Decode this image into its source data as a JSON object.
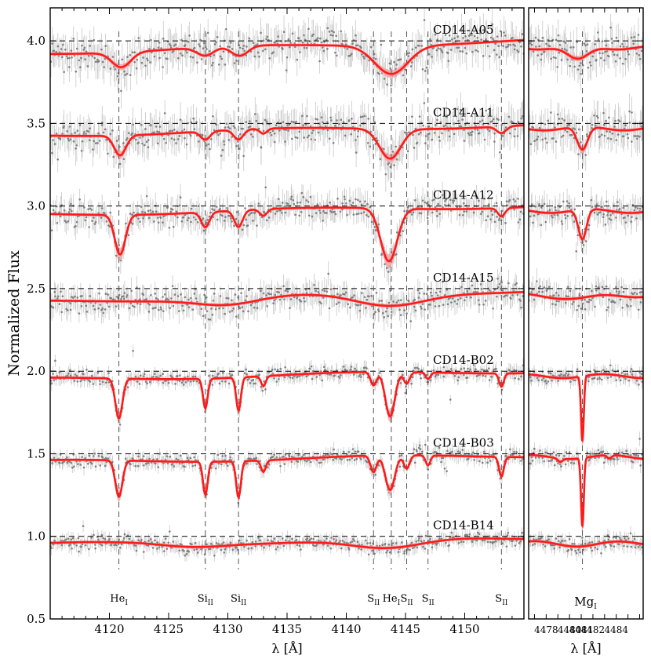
{
  "chart_data": [
    {
      "type": "line",
      "panel": "main",
      "xlabel": "λ [Å]",
      "ylabel": "Normalized Flux",
      "xlim": [
        4115,
        4155
      ],
      "ylim": [
        0.5,
        4.2
      ],
      "xticks": [
        4120,
        4125,
        4130,
        4135,
        4140,
        4145,
        4150
      ],
      "yticks": [
        0.5,
        1.0,
        1.5,
        2.0,
        2.5,
        3.0,
        3.5,
        4.0
      ],
      "ytick_labels": [
        "0.5",
        "1.0",
        "1.5",
        "2.0",
        "2.5",
        "3.0",
        "3.5",
        "4.0"
      ],
      "reference_lines": [
        {
          "label": "He",
          "sub": "I",
          "x": 4120.8
        },
        {
          "label": "Si",
          "sub": "II",
          "x": 4128.1
        },
        {
          "label": "Si",
          "sub": "II",
          "x": 4130.9
        },
        {
          "label": "S",
          "sub": "II",
          "x": 4142.3
        },
        {
          "label": "He",
          "sub": "I",
          "x": 4143.8
        },
        {
          "label": "S",
          "sub": "II",
          "x": 4145.1
        },
        {
          "label": "S",
          "sub": "II",
          "x": 4146.9
        },
        {
          "label": "S",
          "sub": "II",
          "x": 4153.1
        }
      ],
      "series": [
        {
          "name": "CD14-A05",
          "continuum": 4.0,
          "base": 3.93,
          "base_end": 4.0,
          "lines": [
            {
              "x": 4121.0,
              "depth": 0.09,
              "width": 0.8
            },
            {
              "x": 4128.1,
              "depth": 0.05,
              "width": 0.7
            },
            {
              "x": 4131.0,
              "depth": 0.06,
              "width": 0.7
            },
            {
              "x": 4143.8,
              "depth": 0.17,
              "width": 1.4
            }
          ]
        },
        {
          "name": "CD14-A11",
          "continuum": 3.5,
          "base": 3.43,
          "base_end": 3.49,
          "lines": [
            {
              "x": 4120.9,
              "depth": 0.12,
              "width": 0.5
            },
            {
              "x": 4128.1,
              "depth": 0.05,
              "width": 0.4
            },
            {
              "x": 4130.9,
              "depth": 0.06,
              "width": 0.4
            },
            {
              "x": 4133.0,
              "depth": 0.03,
              "width": 0.3
            },
            {
              "x": 4143.7,
              "depth": 0.18,
              "width": 0.9
            },
            {
              "x": 4153.1,
              "depth": 0.04,
              "width": 0.4
            }
          ]
        },
        {
          "name": "CD14-A12",
          "continuum": 3.0,
          "base": 2.95,
          "base_end": 3.0,
          "lines": [
            {
              "x": 4120.9,
              "depth": 0.24,
              "width": 0.45
            },
            {
              "x": 4128.1,
              "depth": 0.09,
              "width": 0.35
            },
            {
              "x": 4130.9,
              "depth": 0.1,
              "width": 0.35
            },
            {
              "x": 4133.0,
              "depth": 0.04,
              "width": 0.3
            },
            {
              "x": 4143.6,
              "depth": 0.32,
              "width": 0.7
            },
            {
              "x": 4153.1,
              "depth": 0.05,
              "width": 0.3
            }
          ]
        },
        {
          "name": "CD14-A15",
          "continuum": 2.5,
          "base": 2.42,
          "base_end": 2.49,
          "lines": [
            {
              "x": 4130.0,
              "depth": 0.04,
              "width": 2.5
            },
            {
              "x": 4143.6,
              "depth": 0.08,
              "width": 3.0
            }
          ]
        },
        {
          "name": "CD14-B02",
          "continuum": 2.0,
          "base": 1.95,
          "base_end": 2.0,
          "lines": [
            {
              "x": 4120.8,
              "depth": 0.24,
              "width": 0.3
            },
            {
              "x": 4128.1,
              "depth": 0.18,
              "width": 0.2
            },
            {
              "x": 4130.9,
              "depth": 0.2,
              "width": 0.2
            },
            {
              "x": 4133.0,
              "depth": 0.06,
              "width": 0.2
            },
            {
              "x": 4142.3,
              "depth": 0.08,
              "width": 0.25
            },
            {
              "x": 4143.7,
              "depth": 0.27,
              "width": 0.4
            },
            {
              "x": 4145.1,
              "depth": 0.07,
              "width": 0.25
            },
            {
              "x": 4146.9,
              "depth": 0.04,
              "width": 0.2
            },
            {
              "x": 4153.1,
              "depth": 0.08,
              "width": 0.2
            }
          ]
        },
        {
          "name": "CD14-B03",
          "continuum": 1.5,
          "base": 1.45,
          "base_end": 1.49,
          "lines": [
            {
              "x": 4120.8,
              "depth": 0.22,
              "width": 0.3
            },
            {
              "x": 4128.1,
              "depth": 0.2,
              "width": 0.2
            },
            {
              "x": 4130.9,
              "depth": 0.22,
              "width": 0.2
            },
            {
              "x": 4133.0,
              "depth": 0.07,
              "width": 0.2
            },
            {
              "x": 4142.3,
              "depth": 0.1,
              "width": 0.25
            },
            {
              "x": 4143.7,
              "depth": 0.21,
              "width": 0.4
            },
            {
              "x": 4145.1,
              "depth": 0.08,
              "width": 0.25
            },
            {
              "x": 4146.9,
              "depth": 0.06,
              "width": 0.2
            },
            {
              "x": 4153.1,
              "depth": 0.12,
              "width": 0.2
            }
          ]
        },
        {
          "name": "CD14-B14",
          "continuum": 1.0,
          "base": 0.95,
          "base_end": 0.99,
          "lines": [
            {
              "x": 4127.0,
              "depth": 0.02,
              "width": 2.5
            },
            {
              "x": 4143.5,
              "depth": 0.06,
              "width": 3.0
            }
          ]
        }
      ]
    },
    {
      "type": "line",
      "panel": "inset",
      "xlabel": "λ [Å]",
      "xlim": [
        4476.5,
        4486.3
      ],
      "ylim": [
        0.5,
        4.2
      ],
      "xticks": [
        4478,
        4480,
        4481,
        4482,
        4484
      ],
      "xtick_labels": [
        "4478",
        "4480",
        "4481",
        "4482",
        "4484"
      ],
      "reference_lines": [
        {
          "label": "Mg",
          "sub": "I",
          "x": 4481.1
        }
      ],
      "series": [
        {
          "name": "CD14-A05",
          "continuum": 4.0,
          "base": 3.96,
          "lines": [
            {
              "x": 4480.7,
              "depth": 0.08,
              "width": 0.9
            }
          ]
        },
        {
          "name": "CD14-A11",
          "continuum": 3.5,
          "base": 3.47,
          "lines": [
            {
              "x": 4481.1,
              "depth": 0.14,
              "width": 0.45
            }
          ]
        },
        {
          "name": "CD14-A12",
          "continuum": 3.0,
          "base": 2.97,
          "lines": [
            {
              "x": 4481.1,
              "depth": 0.18,
              "width": 0.35
            }
          ]
        },
        {
          "name": "CD14-A15",
          "continuum": 2.5,
          "base": 2.46,
          "lines": [
            {
              "x": 4481.0,
              "depth": 0.02,
              "width": 1.6
            }
          ]
        },
        {
          "name": "CD14-B02",
          "continuum": 2.0,
          "base": 1.97,
          "lines": [
            {
              "x": 4481.1,
              "depth": 0.39,
              "width": 0.12
            }
          ]
        },
        {
          "name": "CD14-B03",
          "continuum": 1.5,
          "base": 1.48,
          "lines": [
            {
              "x": 4481.1,
              "depth": 0.41,
              "width": 0.12
            },
            {
              "x": 4479.2,
              "depth": 0.02,
              "width": 0.2
            },
            {
              "x": 4483.4,
              "depth": 0.02,
              "width": 0.2
            }
          ]
        },
        {
          "name": "CD14-B14",
          "continuum": 1.0,
          "base": 0.96,
          "lines": [
            {
              "x": 4481.0,
              "depth": 0.01,
              "width": 2.0
            }
          ]
        }
      ]
    }
  ],
  "colors": {
    "model": "#ff1a1a",
    "model_band": "#f4a0a0",
    "data_points": "#808080",
    "error_bars": "#c8c8c8",
    "dashed": "#333333"
  }
}
